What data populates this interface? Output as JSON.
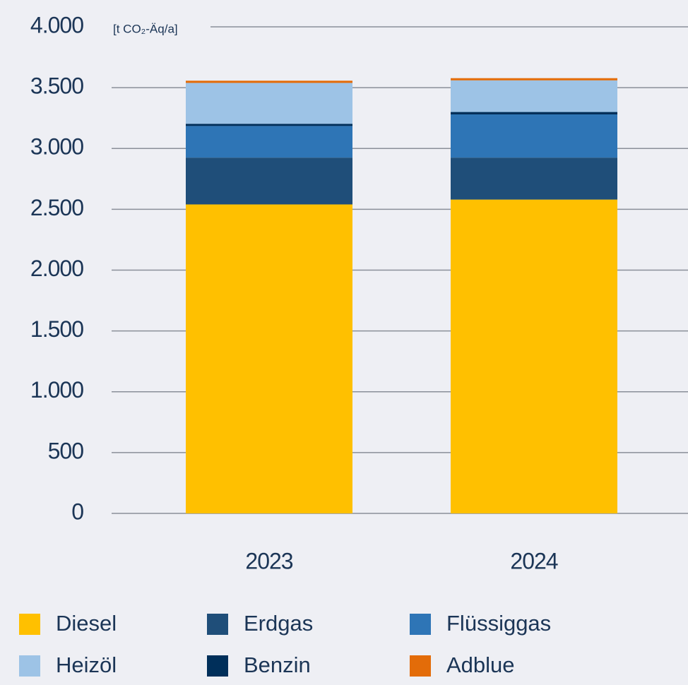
{
  "chart_data": {
    "type": "stacked_bar",
    "y_axis_label": "[t CO₂-Äq/a]",
    "categories": [
      "2023",
      "2024"
    ],
    "series": [
      {
        "name": "Diesel",
        "color": "#ffc000",
        "values": [
          2540,
          2580
        ]
      },
      {
        "name": "Erdgas",
        "color": "#1f4e79",
        "values": [
          385,
          345
        ]
      },
      {
        "name": "Flüssiggas",
        "color": "#2e75b6",
        "values": [
          260,
          355
        ]
      },
      {
        "name": "Heizöl",
        "color": "#9dc3e6",
        "values": [
          336,
          260
        ]
      },
      {
        "name": "Benzin",
        "color": "#002f5a",
        "values": [
          18,
          20
        ]
      },
      {
        "name": "Adblue",
        "color": "#e36c09",
        "values": [
          18,
          18
        ]
      }
    ],
    "ylim": [
      0,
      4000
    ],
    "yticks": [
      0,
      500,
      {
        "value": 1000,
        "label": "1.000"
      },
      {
        "value": 1500,
        "label": "1.500"
      },
      {
        "value": 2000,
        "label": "2.000"
      },
      {
        "value": 2500,
        "label": "2.500"
      },
      {
        "value": 3000,
        "label": "3.000"
      },
      {
        "value": 3500,
        "label": "3.500"
      },
      {
        "value": 4000,
        "label": "4.000"
      }
    ],
    "grid": true
  }
}
